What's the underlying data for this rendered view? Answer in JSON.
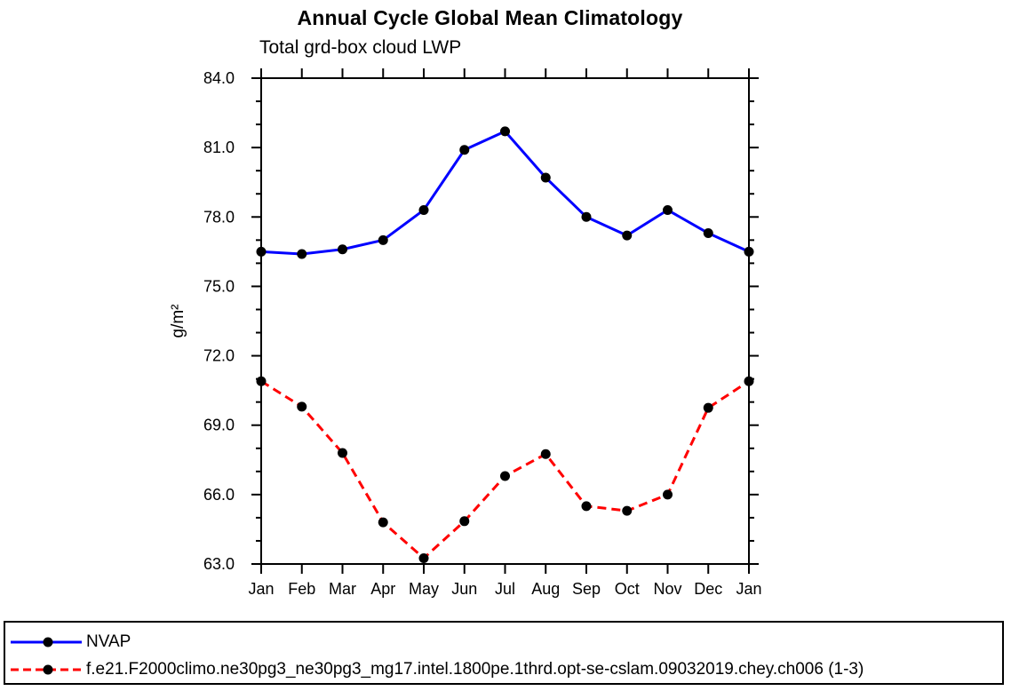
{
  "page": {
    "background": "#ffffff",
    "foreground": "#000000"
  },
  "chart_data": {
    "type": "line",
    "title": "Annual Cycle Global Mean Climatology",
    "subtitle": "Total grd-box cloud LWP",
    "ylabel": "g/m²",
    "xlabel": "",
    "categories": [
      "Jan",
      "Feb",
      "Mar",
      "Apr",
      "May",
      "Jun",
      "Jul",
      "Aug",
      "Sep",
      "Oct",
      "Nov",
      "Dec",
      "Jan"
    ],
    "ylim": [
      63.0,
      84.0
    ],
    "ytick_major_step": 3,
    "ytick_minor_step": 1,
    "ytick_labels": [
      "63.0",
      "66.0",
      "69.0",
      "72.0",
      "75.0",
      "78.0",
      "81.0",
      "84.0"
    ],
    "grid": false,
    "frame": "box-with-outward-ticks",
    "legend_position": "bottom-box",
    "series": [
      {
        "name": "NVAP",
        "color": "#0000ff",
        "line_style": "solid",
        "marker": "filled-circle",
        "marker_color": "#000000",
        "values": [
          76.5,
          76.4,
          76.6,
          77.0,
          78.3,
          80.9,
          81.7,
          79.7,
          78.0,
          77.2,
          78.3,
          77.3,
          76.5
        ]
      },
      {
        "name": "f.e21.F2000climo.ne30pg3_ne30pg3_mg17.intel.1800pe.1thrd.opt-se-cslam.09032019.chey.ch006 (1-3)",
        "color": "#ff0000",
        "line_style": "dashed",
        "marker": "filled-circle",
        "marker_color": "#000000",
        "values": [
          70.9,
          69.8,
          67.8,
          64.8,
          63.25,
          64.85,
          66.8,
          67.75,
          65.5,
          65.3,
          66.0,
          69.75,
          70.9
        ]
      }
    ]
  }
}
